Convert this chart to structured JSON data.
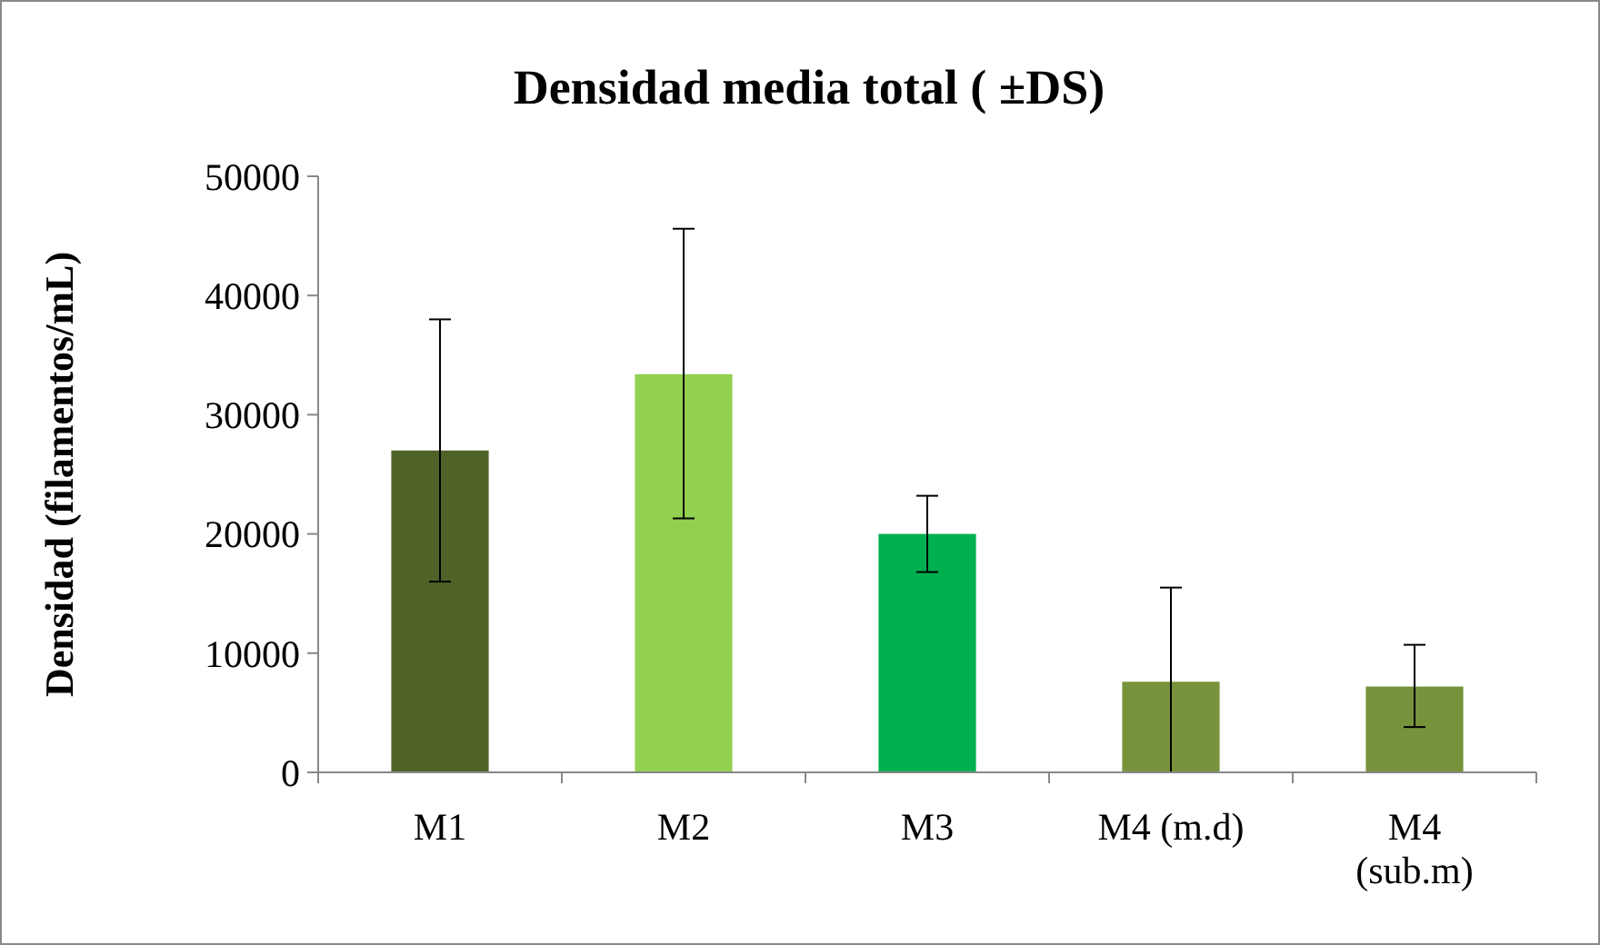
{
  "chart_data": {
    "type": "bar",
    "title": "Densidad media total ( ±DS)",
    "ylabel": "Densidad (filamentos/mL)",
    "categories": [
      "M1",
      "M2",
      "M3",
      "M4 (m.d)",
      "M4 (sub.m)"
    ],
    "values": [
      27000,
      33400,
      20000,
      7600,
      7200
    ],
    "colors": [
      "#4f6228",
      "#92d050",
      "#00b050",
      "#77933c",
      "#77933c"
    ],
    "errors": [
      [
        16000,
        38000
      ],
      [
        21300,
        45600
      ],
      [
        16800,
        23200
      ],
      [
        0,
        15500
      ],
      [
        3800,
        10700
      ]
    ],
    "ylim": [
      0,
      50000
    ],
    "yticks": [
      0,
      10000,
      20000,
      30000,
      40000,
      50000
    ],
    "grid": false
  }
}
